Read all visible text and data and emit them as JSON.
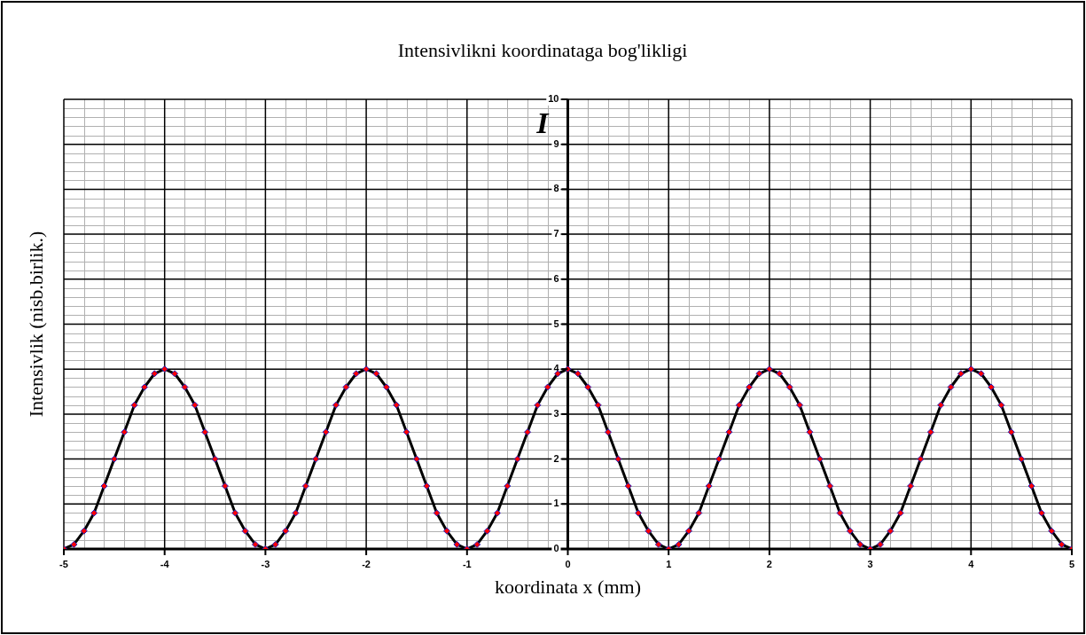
{
  "chart_data": {
    "type": "line",
    "title": "Intensivlikni koordinataga bog'likligi",
    "xlabel": "koordinata x (mm)",
    "ylabel": "Intensivlik (nisb.birlik.)",
    "annotations": [
      "I"
    ],
    "x": [
      -5,
      -4.9,
      -4.8,
      -4.7,
      -4.6,
      -4.5,
      -4.4,
      -4.3,
      -4.2,
      -4.1,
      -4,
      -3.9,
      -3.8,
      -3.7,
      -3.6,
      -3.5,
      -3.4,
      -3.3,
      -3.2,
      -3.1,
      -3,
      -2.9,
      -2.8,
      -2.7,
      -2.6,
      -2.5,
      -2.4,
      -2.3,
      -2.2,
      -2.1,
      -2,
      -1.9,
      -1.8,
      -1.7,
      -1.6,
      -1.5,
      -1.4,
      -1.3,
      -1.2,
      -1.1,
      -1,
      -0.9,
      -0.8,
      -0.7,
      -0.6,
      -0.5,
      -0.4,
      -0.3,
      -0.2,
      -0.1,
      0,
      0.1,
      0.2,
      0.3,
      0.4,
      0.5,
      0.6,
      0.7,
      0.8,
      0.9,
      1,
      1.1,
      1.2,
      1.3,
      1.4,
      1.5,
      1.6,
      1.7,
      1.8,
      1.9,
      2,
      2.1,
      2.2,
      2.3,
      2.4,
      2.5,
      2.6,
      2.7,
      2.8,
      2.9,
      3,
      3.1,
      3.2,
      3.3,
      3.4,
      3.5,
      3.6,
      3.7,
      3.8,
      3.9,
      4,
      4.1,
      4.2,
      4.3,
      4.4,
      4.5,
      4.6,
      4.7,
      4.8,
      4.9,
      5
    ],
    "series": [
      {
        "color": "#000000",
        "values": [
          0,
          0.1,
          0.4,
          0.8,
          1.4,
          2,
          2.6,
          3.2,
          3.6,
          3.9,
          4,
          3.9,
          3.6,
          3.2,
          2.6,
          2,
          1.4,
          0.8,
          0.4,
          0.1,
          0,
          0.1,
          0.4,
          0.8,
          1.4,
          2,
          2.6,
          3.2,
          3.6,
          3.9,
          4,
          3.9,
          3.6,
          3.2,
          2.6,
          2,
          1.4,
          0.8,
          0.4,
          0.1,
          0,
          0.1,
          0.4,
          0.8,
          1.4,
          2,
          2.6,
          3.2,
          3.6,
          3.9,
          4,
          3.9,
          3.6,
          3.2,
          2.6,
          2,
          1.4,
          0.8,
          0.4,
          0.1,
          0,
          0.1,
          0.4,
          0.8,
          1.4,
          2,
          2.6,
          3.2,
          3.6,
          3.9,
          4,
          3.9,
          3.6,
          3.2,
          2.6,
          2,
          1.4,
          0.8,
          0.4,
          0.1,
          0,
          0.1,
          0.4,
          0.8,
          1.4,
          2,
          2.6,
          3.2,
          3.6,
          3.9,
          4,
          3.9,
          3.6,
          3.2,
          2.6,
          2,
          1.4,
          0.8,
          0.4,
          0.1,
          0
        ]
      }
    ],
    "xlim": [
      -5,
      5
    ],
    "ylim": [
      0,
      10
    ],
    "xticks": [
      -5,
      -4,
      -3,
      -2,
      -1,
      0,
      1,
      2,
      3,
      4,
      5
    ],
    "yticks": [
      0,
      1,
      2,
      3,
      4,
      5,
      6,
      7,
      8,
      9,
      10
    ],
    "grid": true,
    "legend": false,
    "marker": "diamond",
    "line_style": "solid"
  }
}
